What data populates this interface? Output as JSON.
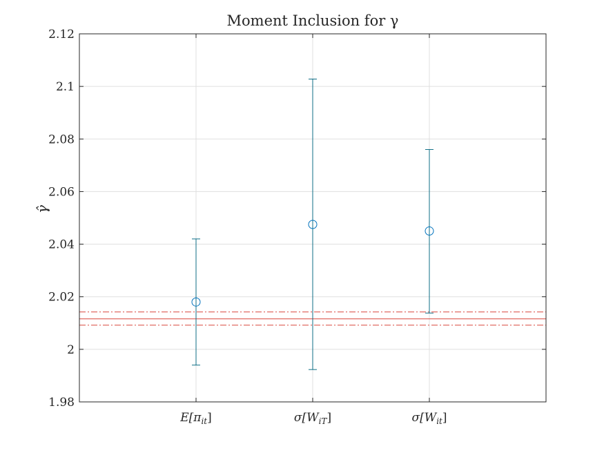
{
  "chart_data": {
    "type": "errorbar",
    "title": "Moment Inclusion for γ",
    "ylabel": "γ̂",
    "xlabel": "",
    "categories": [
      "E[π",
      "σ[W",
      "σ[W"
    ],
    "category_subscripts": [
      "it",
      "iT",
      "it"
    ],
    "category_suffix": "]",
    "ylim": [
      1.98,
      2.12
    ],
    "yticks": [
      1.98,
      2,
      2.02,
      2.04,
      2.06,
      2.08,
      2.1,
      2.12
    ],
    "ytick_labels": [
      "1.98",
      "2",
      "2.02",
      "2.04",
      "2.06",
      "2.08",
      "2.1",
      "2.12"
    ],
    "grid": true,
    "series": [
      {
        "values": [
          2.018,
          2.0475,
          2.045
        ],
        "lower": [
          1.994,
          1.9923,
          2.0138
        ],
        "upper": [
          2.042,
          2.1028,
          2.076
        ]
      }
    ],
    "reference_lines": [
      {
        "y": 2.0116,
        "style": "solid"
      },
      {
        "y": 2.0142,
        "style": "dashdot"
      },
      {
        "y": 2.0092,
        "style": "dashdot"
      }
    ],
    "colors": {
      "series": "#0072BD",
      "errorbar": "#0E6E86",
      "reference": "#D9453A",
      "grid": "#DFDFDF",
      "axis": "#262626"
    }
  }
}
